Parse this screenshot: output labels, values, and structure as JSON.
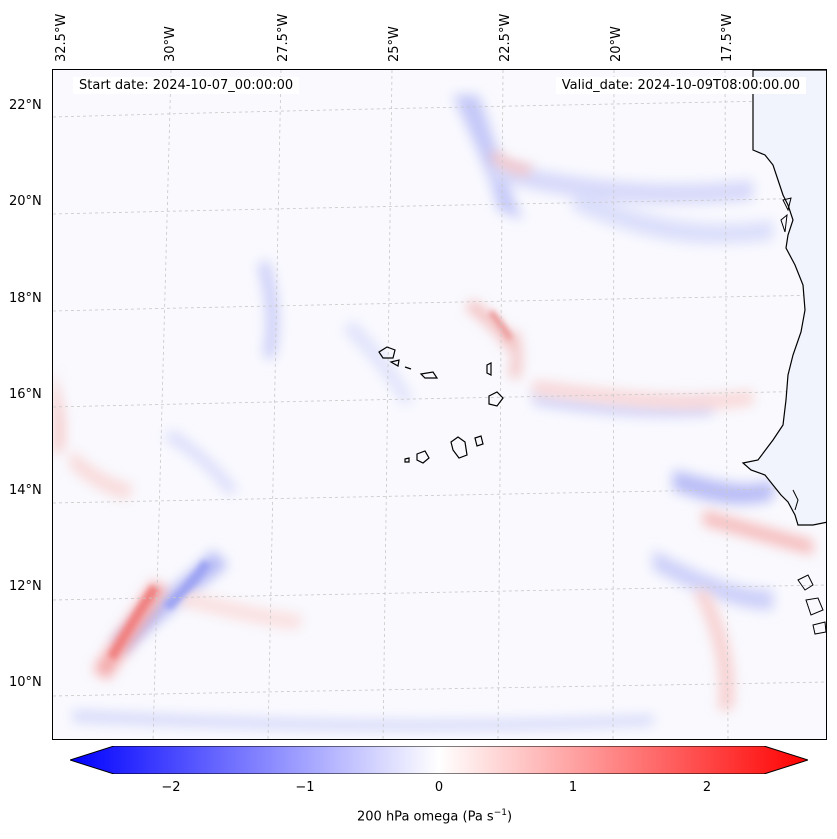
{
  "header": {
    "start_date": "Start date: 2024-10-07_00:00:00",
    "valid_date": "Valid_date: 2024-10-09T08:00:00.00"
  },
  "longitude_labels": [
    "32.5°W",
    "30°W",
    "27.5°W",
    "25°W",
    "22.5°W",
    "20°W",
    "17.5°W"
  ],
  "latitude_labels": [
    "22°N",
    "20°N",
    "18°N",
    "16°N",
    "14°N",
    "12°N",
    "10°N"
  ],
  "colorbar": {
    "ticks": [
      "−2",
      "−1",
      "0",
      "1",
      "2"
    ],
    "label": "200 hPa omega (Pa s",
    "label_sup": "−1",
    "label_end": ")",
    "min": -2.5,
    "max": 2.5,
    "colors": {
      "negative": "#0000ff",
      "zero": "#ffffff",
      "positive": "#ff0000"
    }
  },
  "map": {
    "land_color": "#ffffff",
    "coast_color": "#000000",
    "grid_color": "#c8c8c8"
  }
}
